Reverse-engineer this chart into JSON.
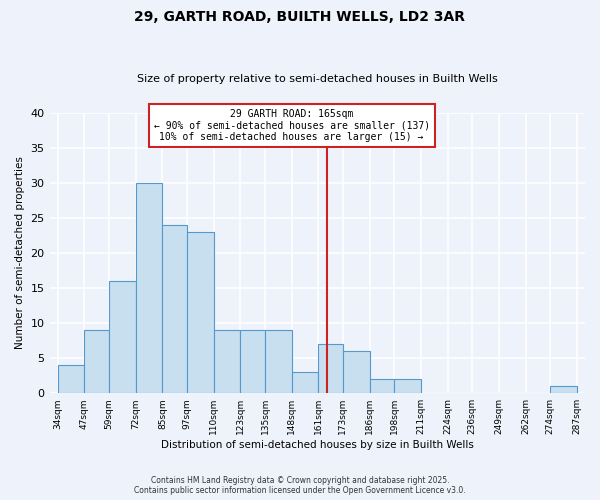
{
  "title": "29, GARTH ROAD, BUILTH WELLS, LD2 3AR",
  "subtitle": "Size of property relative to semi-detached houses in Builth Wells",
  "xlabel": "Distribution of semi-detached houses by size in Builth Wells",
  "ylabel": "Number of semi-detached properties",
  "bin_edges": [
    34,
    47,
    59,
    72,
    85,
    97,
    110,
    123,
    135,
    148,
    161,
    173,
    186,
    198,
    211,
    224,
    236,
    249,
    262,
    274,
    287
  ],
  "bin_counts": [
    4,
    9,
    16,
    30,
    24,
    23,
    9,
    9,
    9,
    3,
    7,
    6,
    2,
    2,
    0,
    0,
    0,
    0,
    0,
    1
  ],
  "tick_labels": [
    "34sqm",
    "47sqm",
    "59sqm",
    "72sqm",
    "85sqm",
    "97sqm",
    "110sqm",
    "123sqm",
    "135sqm",
    "148sqm",
    "161sqm",
    "173sqm",
    "186sqm",
    "198sqm",
    "211sqm",
    "224sqm",
    "236sqm",
    "249sqm",
    "262sqm",
    "274sqm",
    "287sqm"
  ],
  "bar_color": "#c8dff0",
  "bar_edge_color": "#5599cc",
  "vline_x": 165,
  "vline_color": "#cc2222",
  "ylim": [
    0,
    40
  ],
  "yticks": [
    0,
    5,
    10,
    15,
    20,
    25,
    30,
    35,
    40
  ],
  "annotation_title": "29 GARTH ROAD: 165sqm",
  "annotation_line1": "← 90% of semi-detached houses are smaller (137)",
  "annotation_line2": "10% of semi-detached houses are larger (15) →",
  "annotation_box_color": "#ffffff",
  "annotation_box_edge": "#cc2222",
  "footnote1": "Contains HM Land Registry data © Crown copyright and database right 2025.",
  "footnote2": "Contains public sector information licensed under the Open Government Licence v3.0.",
  "background_color": "#eef2fa",
  "grid_color": "#ffffff"
}
